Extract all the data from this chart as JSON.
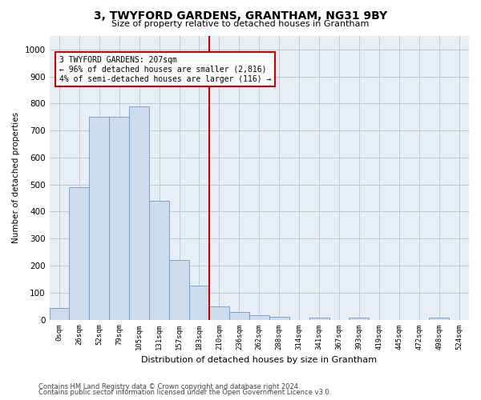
{
  "title": "3, TWYFORD GARDENS, GRANTHAM, NG31 9BY",
  "subtitle": "Size of property relative to detached houses in Grantham",
  "xlabel": "Distribution of detached houses by size in Grantham",
  "ylabel": "Number of detached properties",
  "bar_color": "#ccdcec",
  "bar_edge_color": "#6699cc",
  "background_color": "#ffffff",
  "plot_bg_color": "#e8eef5",
  "grid_color": "#c0c8d0",
  "annotation_box_color": "#cc0000",
  "vline_color": "#cc0000",
  "vline_x": 8,
  "annotation_text_line1": "3 TWYFORD GARDENS: 207sqm",
  "annotation_text_line2": "← 96% of detached houses are smaller (2,816)",
  "annotation_text_line3": "4% of semi-detached houses are larger (116) →",
  "bin_labels": [
    "0sqm",
    "26sqm",
    "52sqm",
    "79sqm",
    "105sqm",
    "131sqm",
    "157sqm",
    "183sqm",
    "210sqm",
    "236sqm",
    "262sqm",
    "288sqm",
    "314sqm",
    "341sqm",
    "367sqm",
    "393sqm",
    "419sqm",
    "445sqm",
    "472sqm",
    "498sqm",
    "524sqm"
  ],
  "bar_heights": [
    42,
    490,
    750,
    750,
    790,
    440,
    220,
    125,
    50,
    28,
    15,
    10,
    0,
    8,
    0,
    8,
    0,
    0,
    0,
    8,
    0
  ],
  "ylim": [
    0,
    1050
  ],
  "yticks": [
    0,
    100,
    200,
    300,
    400,
    500,
    600,
    700,
    800,
    900,
    1000
  ],
  "footer_line1": "Contains HM Land Registry data © Crown copyright and database right 2024.",
  "footer_line2": "Contains public sector information licensed under the Open Government Licence v3.0."
}
